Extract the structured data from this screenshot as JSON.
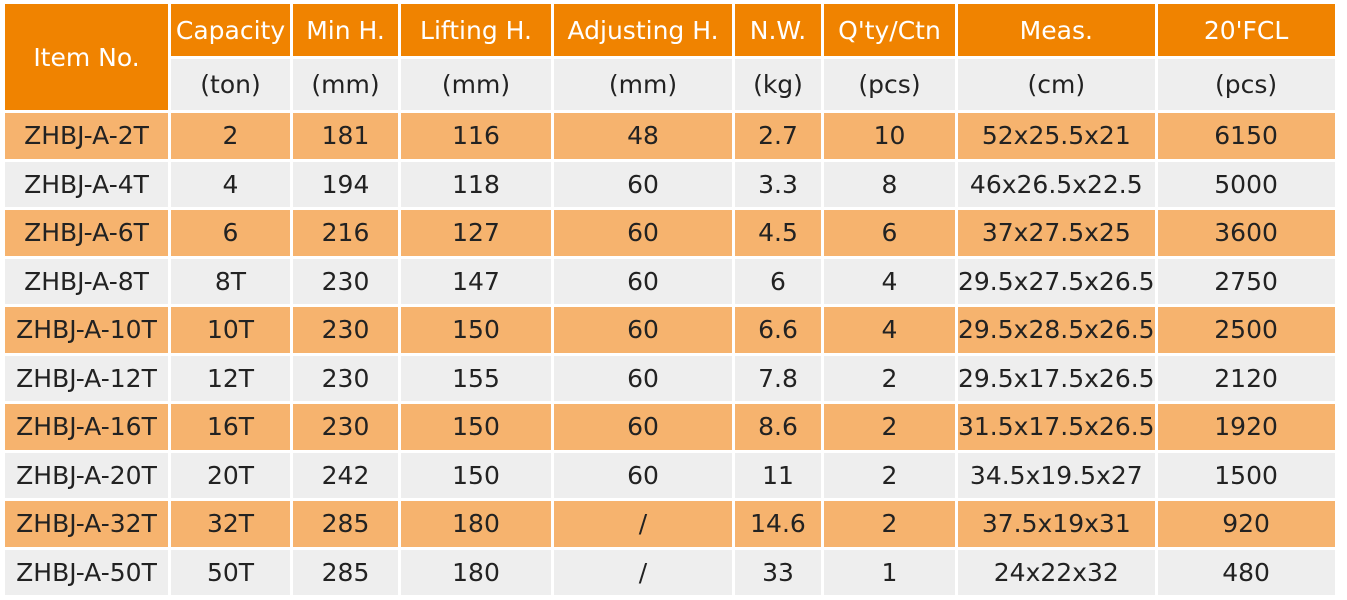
{
  "table": {
    "headers": [
      "Item No.",
      "Capacity",
      "Min H.",
      "Lifting H.",
      "Adjusting H.",
      "N.W.",
      "Q'ty/Ctn",
      "Meas.",
      "20'FCL"
    ],
    "units": [
      "(ton)",
      "(mm)",
      "(mm)",
      "(mm)",
      "(kg)",
      "(pcs)",
      "(cm)",
      "(pcs)"
    ],
    "rows": [
      [
        "ZHBJ-A-2T",
        "2",
        "181",
        "116",
        "48",
        "2.7",
        "10",
        "52x25.5x21",
        "6150"
      ],
      [
        "ZHBJ-A-4T",
        "4",
        "194",
        "118",
        "60",
        "3.3",
        "8",
        "46x26.5x22.5",
        "5000"
      ],
      [
        "ZHBJ-A-6T",
        "6",
        "216",
        "127",
        "60",
        "4.5",
        "6",
        "37x27.5x25",
        "3600"
      ],
      [
        "ZHBJ-A-8T",
        "8T",
        "230",
        "147",
        "60",
        "6",
        "4",
        "29.5x27.5x26.5",
        "2750"
      ],
      [
        "ZHBJ-A-10T",
        "10T",
        "230",
        "150",
        "60",
        "6.6",
        "4",
        "29.5x28.5x26.5",
        "2500"
      ],
      [
        "ZHBJ-A-12T",
        "12T",
        "230",
        "155",
        "60",
        "7.8",
        "2",
        "29.5x17.5x26.5",
        "2120"
      ],
      [
        "ZHBJ-A-16T",
        "16T",
        "230",
        "150",
        "60",
        "8.6",
        "2",
        "31.5x17.5x26.5",
        "1920"
      ],
      [
        "ZHBJ-A-20T",
        "20T",
        "242",
        "150",
        "60",
        "11",
        "2",
        "34.5x19.5x27",
        "1500"
      ],
      [
        "ZHBJ-A-32T",
        "32T",
        "285",
        "180",
        "/",
        "14.6",
        "2",
        "37.5x19x31",
        "920"
      ],
      [
        "ZHBJ-A-50T",
        "50T",
        "285",
        "180",
        "/",
        "33",
        "1",
        "24x22x32",
        "480"
      ]
    ],
    "colors": {
      "header_bg": "#f08300",
      "odd_row_bg": "#f6b36e",
      "even_row_bg": "#eeeeee"
    }
  }
}
